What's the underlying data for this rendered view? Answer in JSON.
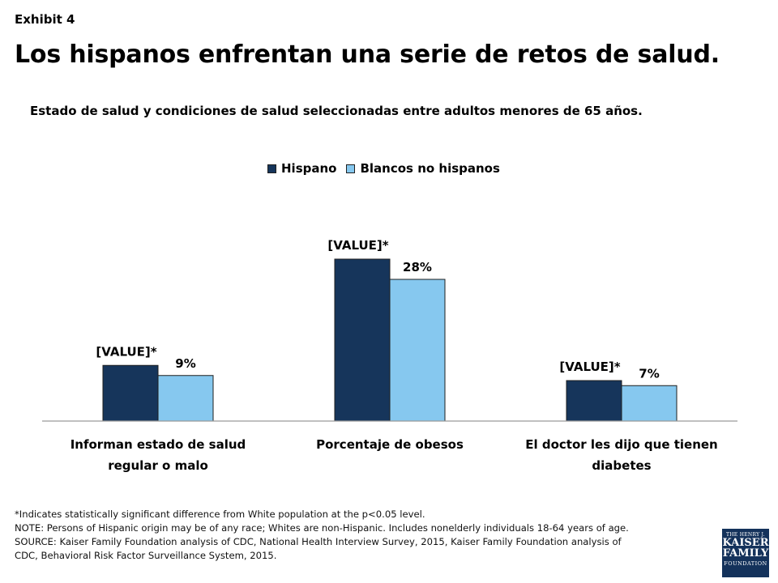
{
  "header": {
    "exhibit": "Exhibit 4",
    "title": "Los hispanos enfrentan una serie de retos de salud."
  },
  "colors": {
    "hispano": "#16355b",
    "blancos": "#86c8ef",
    "axis": "#9a9a9a",
    "bar_stroke": "#1f1f1f"
  },
  "chart_data": {
    "type": "bar",
    "subtitle": "Estado de salud y condiciones de salud seleccionadas entre adultos menores de 65 años.",
    "categories": [
      [
        "Informan estado de salud",
        "regular o malo"
      ],
      [
        "Porcentaje de obesos"
      ],
      [
        "El doctor les dijo que tienen",
        "diabetes"
      ]
    ],
    "series": [
      {
        "name": "Hispano",
        "values": [
          11,
          32,
          8
        ],
        "labels": [
          "[VALUE]*",
          "[VALUE]*",
          "[VALUE]*"
        ]
      },
      {
        "name": "Blancos no hispanos",
        "values": [
          9,
          28,
          7
        ],
        "labels": [
          "9%",
          "28%",
          "7%"
        ]
      }
    ],
    "ylim": [
      0,
      40
    ],
    "grid": false,
    "legend": "top-center"
  },
  "notes": [
    "*Indicates statistically significant difference from White population at the p<0.05 level.",
    "NOTE: Persons of Hispanic origin may be of any race; Whites are non-Hispanic. Includes nonelderly individuals 18-64 years of age.",
    "SOURCE: Kaiser Family Foundation analysis of CDC, National Health Interview Survey, 2015, Kaiser Family Foundation analysis of",
    "CDC, Behavioral Risk Factor Surveillance System, 2015."
  ],
  "logo": {
    "line1": "THE HENRY J.",
    "line2": "KAISER",
    "line3": "FAMILY",
    "line4": "FOUNDATION"
  }
}
